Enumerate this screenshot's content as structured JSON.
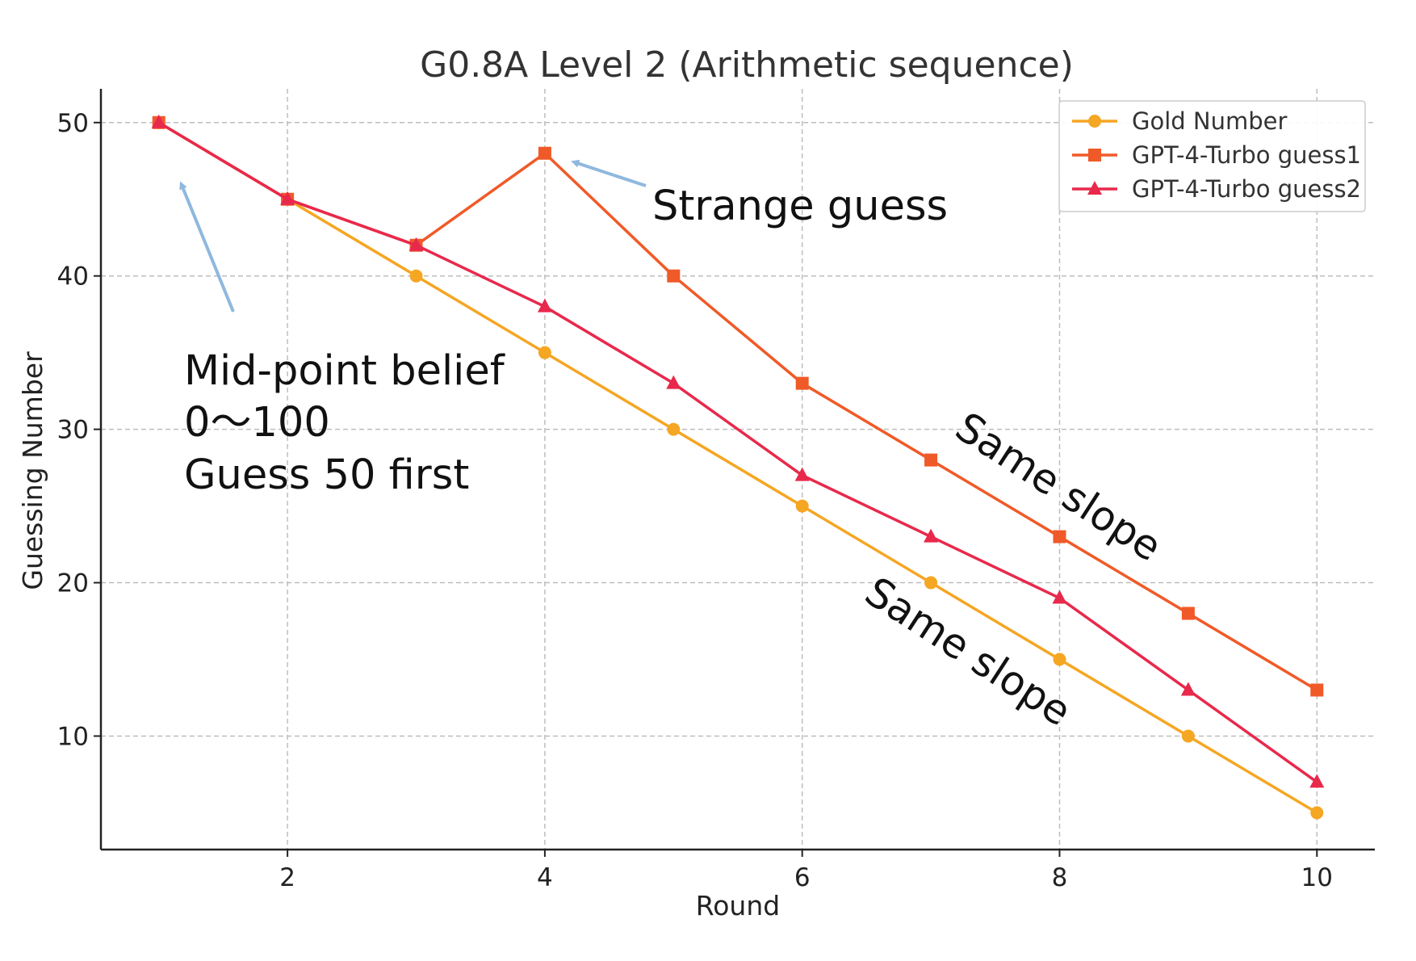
{
  "chart_data": {
    "type": "line",
    "title": "G0.8A Level 2 (Arithmetic sequence)",
    "xlabel": "Round",
    "ylabel": "Guessing Number",
    "x": [
      1,
      2,
      3,
      4,
      5,
      6,
      7,
      8,
      9,
      10
    ],
    "xlim": [
      0.55,
      10.45
    ],
    "ylim": [
      2.6,
      52.2
    ],
    "xticks": [
      2,
      4,
      6,
      8,
      10
    ],
    "yticks": [
      10,
      20,
      30,
      40,
      50
    ],
    "grid": true,
    "legend_position": "top-right",
    "series": [
      {
        "name": "Gold Number",
        "color": "#f5a623",
        "marker": "circle",
        "values": [
          50,
          45,
          40,
          35,
          30,
          25,
          20,
          15,
          10,
          5
        ]
      },
      {
        "name": "GPT-4-Turbo guess1",
        "color": "#f05a28",
        "marker": "square",
        "values": [
          50,
          45,
          42,
          48,
          40,
          33,
          28,
          23,
          18,
          13
        ]
      },
      {
        "name": "GPT-4-Turbo guess2",
        "color": "#e8294c",
        "marker": "triangle",
        "values": [
          50,
          45,
          42,
          38,
          33,
          27,
          23,
          19,
          13,
          7
        ]
      }
    ],
    "annotations": {
      "midpoint_lines": [
        "Mid-point belief",
        "0～100",
        "Guess 50 first"
      ],
      "strange_guess": "Strange guess",
      "same_slope_upper": "Same slope",
      "same_slope_lower": "Same slope",
      "arrow_color": "#8fb8de"
    }
  }
}
